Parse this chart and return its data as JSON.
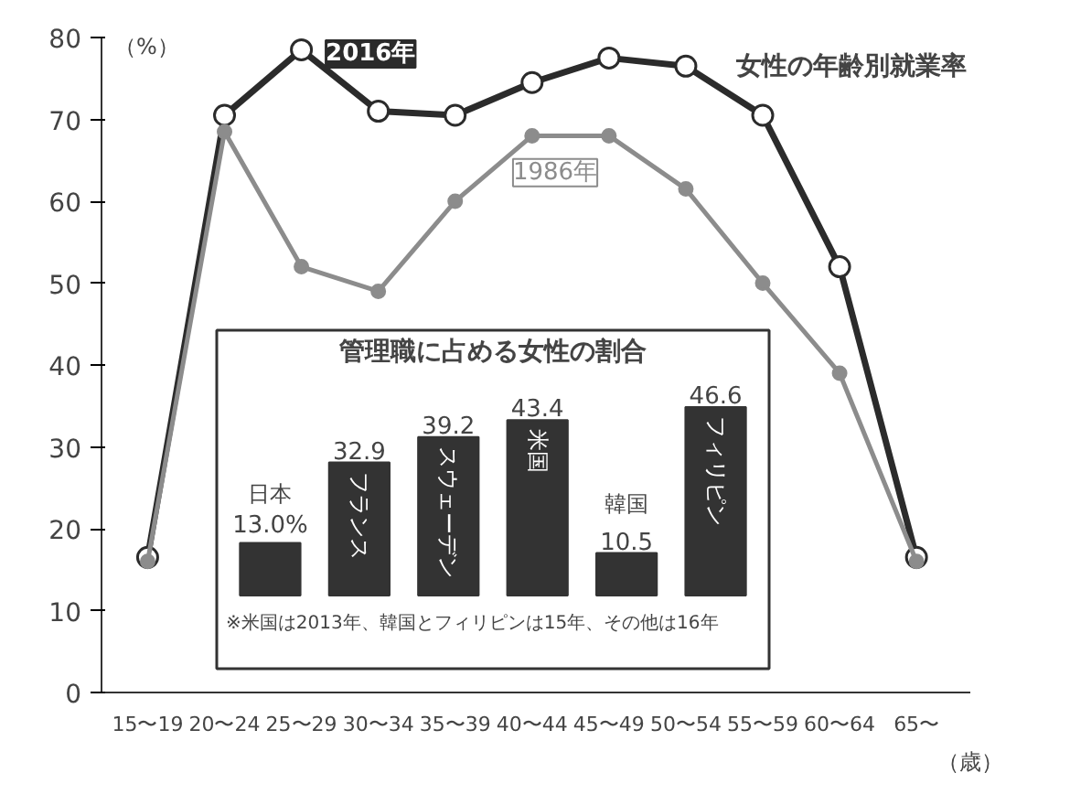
{
  "chart_data": [
    {
      "type": "line",
      "title": "女性の年齢別就業率",
      "ylabel": "（%）",
      "xlabel": "（歳）",
      "categories": [
        "15〜19",
        "20〜24",
        "25〜29",
        "30〜34",
        "35〜39",
        "40〜44",
        "45〜49",
        "50〜54",
        "55〜59",
        "60〜64",
        "65〜"
      ],
      "series": [
        {
          "name": "2016年",
          "color": "#2b2b2b",
          "values": [
            16.5,
            70.5,
            78.5,
            71,
            70.5,
            74.5,
            77.5,
            76.5,
            70.5,
            52,
            16.5
          ]
        },
        {
          "name": "1986年",
          "color": "#8c8c8c",
          "values": [
            16,
            68.5,
            52,
            49,
            60,
            68,
            68,
            61.5,
            50,
            39,
            16
          ]
        }
      ],
      "ylim": [
        0,
        80
      ],
      "yticks": [
        0,
        10,
        20,
        30,
        40,
        50,
        60,
        70,
        80
      ],
      "marker": "circle",
      "grid": false,
      "legend": false
    },
    {
      "type": "bar",
      "title": "管理職に占める女性の割合",
      "categories": [
        "日本",
        "フランス",
        "スウェーデン",
        "米国",
        "韓国",
        "フィリピン"
      ],
      "values": [
        13.0,
        32.9,
        39.2,
        43.4,
        10.5,
        46.6
      ],
      "color": "#333333",
      "value_labels": [
        "13.0%",
        "32.9",
        "39.2",
        "43.4",
        "10.5",
        "46.6"
      ],
      "annotations": [
        "※米国は2013年、韓国とフィリピンは15年、その他は16年"
      ]
    }
  ]
}
